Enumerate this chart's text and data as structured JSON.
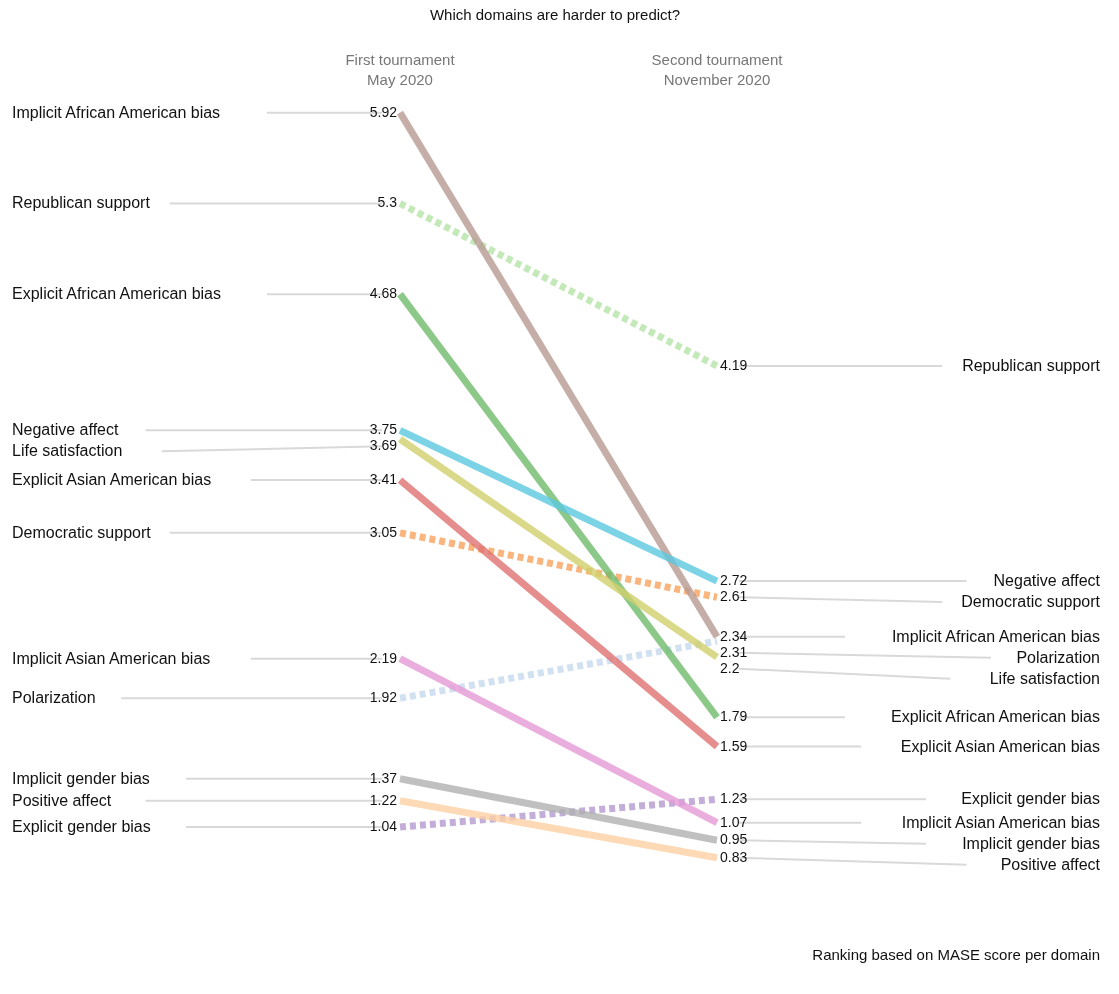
{
  "chart_data": {
    "type": "line",
    "title": "Which domains are harder to predict?",
    "categories": [
      "First tournament\nMay 2020",
      "Second tournament\nNovember 2020"
    ],
    "data_labels": true,
    "annotations": [
      "Ranking based on MASE score per domain"
    ],
    "series": [
      {
        "name": "Implicit African American bias",
        "color": "#b89a92",
        "values": [
          5.92,
          2.34
        ]
      },
      {
        "name": "Republican support",
        "color": "#b5e3a6",
        "values": [
          5.3,
          4.19
        ],
        "line_style": "dashed"
      },
      {
        "name": "Explicit African American bias",
        "color": "#6fba6a",
        "values": [
          4.68,
          1.79
        ]
      },
      {
        "name": "Negative affect",
        "color": "#5bc8df",
        "values": [
          3.75,
          2.72
        ]
      },
      {
        "name": "Life satisfaction",
        "color": "#cfcf6c",
        "values": [
          3.69,
          2.2
        ]
      },
      {
        "name": "Explicit Asian American bias",
        "color": "#e07070",
        "values": [
          3.41,
          1.59
        ]
      },
      {
        "name": "Democratic support",
        "color": "#f7a35c",
        "values": [
          3.05,
          2.61
        ],
        "line_style": "dashed"
      },
      {
        "name": "Implicit Asian American bias",
        "color": "#e59ad6",
        "values": [
          2.19,
          1.07
        ]
      },
      {
        "name": "Polarization",
        "color": "#c6d9ee",
        "values": [
          1.92,
          2.31
        ],
        "line_style": "dashed"
      },
      {
        "name": "Implicit gender bias",
        "color": "#b0b0b0",
        "values": [
          1.37,
          0.95
        ]
      },
      {
        "name": "Positive affect",
        "color": "#fdd0a2",
        "values": [
          1.22,
          0.83
        ]
      },
      {
        "name": "Explicit gender bias",
        "color": "#b49ad0",
        "values": [
          1.04,
          1.23
        ],
        "line_style": "dashed"
      }
    ]
  }
}
